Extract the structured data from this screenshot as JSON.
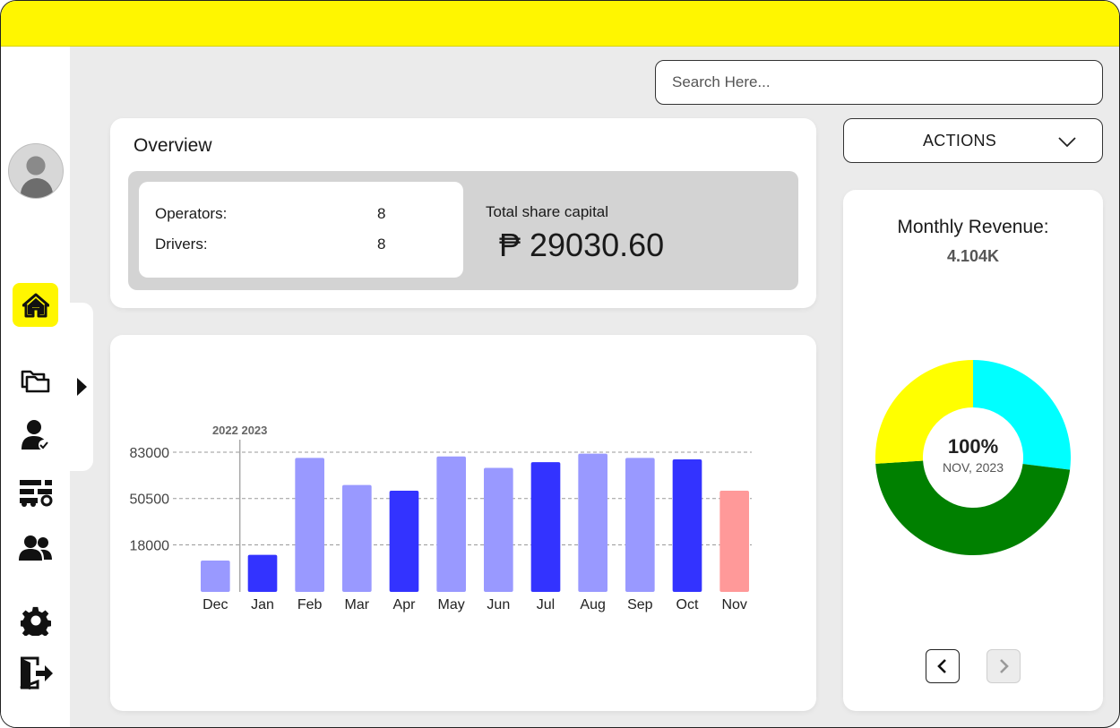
{
  "search": {
    "placeholder": "Search Here..."
  },
  "sidebar": {
    "items": [
      {
        "icon": "home-icon",
        "active": true
      },
      {
        "icon": "folders-icon"
      },
      {
        "icon": "user-check-icon"
      },
      {
        "icon": "vehicle-settings-icon"
      },
      {
        "icon": "users-icon"
      },
      {
        "icon": "gear-icon"
      },
      {
        "icon": "logout-icon"
      }
    ]
  },
  "overview": {
    "title": "Overview",
    "operators_label": "Operators:",
    "operators_value": "8",
    "drivers_label": "Drivers:",
    "drivers_value": "8",
    "capital_label": "Total share capital",
    "capital_value": "₱ 29030.60"
  },
  "actions": {
    "label": "ACTIONS"
  },
  "revenue": {
    "title": "Monthly Revenue:",
    "value": "4.104K",
    "center_percent": "100%",
    "center_period": "NOV, 2023",
    "colors": [
      "#00ffff",
      "#008000",
      "#ffff00"
    ]
  },
  "colors": {
    "accent": "#fff600",
    "bar_light": "#9999ff",
    "bar_dark": "#3333ff",
    "bar_current": "#ff9999"
  },
  "chart_data": [
    {
      "type": "bar",
      "categories": [
        "Dec",
        "Jan",
        "Feb",
        "Mar",
        "Apr",
        "May",
        "Jun",
        "Jul",
        "Aug",
        "Sep",
        "Oct",
        "Nov"
      ],
      "values": [
        7000,
        11000,
        79000,
        60000,
        56000,
        80000,
        72000,
        76000,
        82000,
        79000,
        78000,
        56000
      ],
      "bar_colors": [
        "#9999ff",
        "#3333ff",
        "#9999ff",
        "#9999ff",
        "#3333ff",
        "#9999ff",
        "#9999ff",
        "#3333ff",
        "#9999ff",
        "#9999ff",
        "#3333ff",
        "#ff9999"
      ],
      "yticks": [
        18000,
        50500,
        83000
      ],
      "ytick_labels": [
        "18000",
        "50500",
        "83000"
      ],
      "year_divider_label": "2022 2023",
      "ylim": [
        -15000,
        83000
      ],
      "grid": true
    },
    {
      "type": "pie",
      "labels": [
        "",
        "",
        ""
      ],
      "values": [
        27,
        47,
        26
      ],
      "colors": [
        "#00ffff",
        "#008000",
        "#ffff00"
      ]
    }
  ]
}
